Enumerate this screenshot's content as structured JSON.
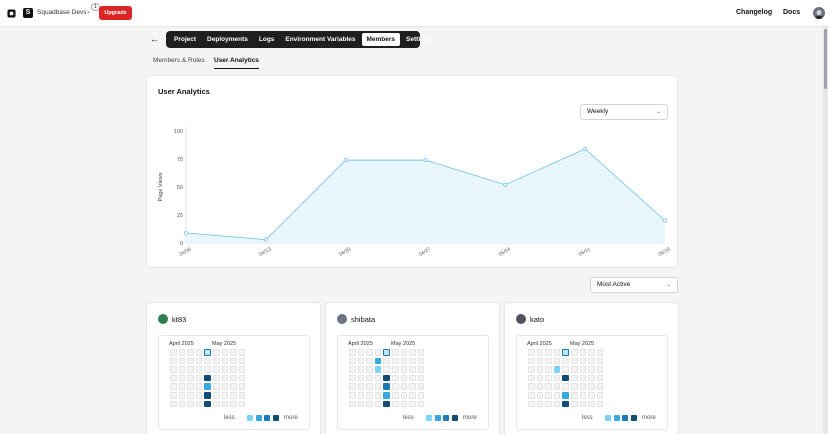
{
  "header": {
    "team_name": "Squadbase Devs",
    "notification_count": "1",
    "upgrade_label": "Upgrade",
    "changelog_label": "Changelog",
    "docs_label": "Docs"
  },
  "nav": {
    "tabs": [
      {
        "label": "Project",
        "active": false
      },
      {
        "label": "Deployments",
        "active": false
      },
      {
        "label": "Logs",
        "active": false
      },
      {
        "label": "Environment Variables",
        "active": false
      },
      {
        "label": "Members",
        "active": true
      },
      {
        "label": "Settings",
        "active": false
      }
    ],
    "subtabs": [
      {
        "label": "Members & Roles",
        "active": false
      },
      {
        "label": "User Analytics",
        "active": true
      }
    ]
  },
  "analytics": {
    "title": "User Analytics",
    "period_select": "Weekly",
    "sort_select": "Most Active"
  },
  "chart_data": {
    "type": "area",
    "x": [
      "04/06",
      "04/13",
      "04/20",
      "04/27",
      "05/04",
      "05/11",
      "05/18"
    ],
    "values": [
      9,
      3,
      74,
      74,
      52,
      84,
      20
    ],
    "ylabel": "Page Views",
    "xlabel": "",
    "ylim": [
      0,
      100
    ],
    "yticks": [
      0,
      25,
      50,
      75,
      100
    ],
    "color": "#7cc6e8",
    "fill": "#eaf6fd"
  },
  "members": [
    {
      "name": "kt83",
      "avatar_color": "#2f7d4f",
      "months": [
        "April 2025",
        "May 2025"
      ],
      "grid": [
        [
          0,
          0,
          0,
          0,
          0,
          0,
          0
        ],
        [
          0,
          0,
          0,
          0,
          0,
          0,
          0
        ],
        [
          0,
          0,
          0,
          0,
          0,
          0,
          0
        ],
        [
          0,
          0,
          0,
          0,
          0,
          0,
          0
        ],
        [
          3,
          0,
          0,
          4,
          2,
          4,
          4
        ],
        [
          0,
          0,
          0,
          0,
          0,
          0,
          0
        ],
        [
          0,
          0,
          0,
          0,
          0,
          0,
          0
        ],
        [
          0,
          0,
          0,
          0,
          0,
          0,
          0
        ],
        [
          0,
          0,
          0,
          0,
          0,
          0,
          0
        ]
      ],
      "highlight": [
        4,
        0
      ]
    },
    {
      "name": "shibata",
      "avatar_color": "#6b7280",
      "months": [
        "April 2025",
        "May 2025"
      ],
      "grid": [
        [
          0,
          0,
          0,
          0,
          0,
          0,
          0
        ],
        [
          0,
          0,
          0,
          0,
          0,
          0,
          0
        ],
        [
          0,
          0,
          0,
          0,
          0,
          0,
          0
        ],
        [
          0,
          2,
          1,
          0,
          0,
          0,
          0
        ],
        [
          1,
          0,
          0,
          4,
          3,
          2,
          4
        ],
        [
          0,
          0,
          0,
          0,
          0,
          0,
          0
        ],
        [
          0,
          0,
          0,
          0,
          0,
          0,
          0
        ],
        [
          0,
          0,
          0,
          0,
          0,
          0,
          0
        ],
        [
          0,
          0,
          0,
          0,
          0,
          0,
          0
        ]
      ],
      "highlight": [
        4,
        0
      ]
    },
    {
      "name": "kato",
      "avatar_color": "#52525b",
      "months": [
        "April 2025",
        "May 2025"
      ],
      "grid": [
        [
          0,
          0,
          0,
          0,
          0,
          0,
          0
        ],
        [
          0,
          0,
          0,
          0,
          0,
          0,
          0
        ],
        [
          0,
          0,
          0,
          0,
          0,
          0,
          0
        ],
        [
          0,
          0,
          1,
          0,
          0,
          0,
          0
        ],
        [
          3,
          0,
          0,
          4,
          0,
          2,
          4
        ],
        [
          0,
          0,
          0,
          0,
          0,
          0,
          0
        ],
        [
          0,
          0,
          0,
          0,
          0,
          0,
          0
        ],
        [
          0,
          0,
          0,
          0,
          0,
          0,
          0
        ],
        [
          0,
          0,
          0,
          0,
          0,
          0,
          0
        ]
      ],
      "highlight": [
        4,
        0
      ]
    }
  ],
  "legend": {
    "less_label": "less",
    "more_label": "more",
    "colors": [
      "#dbeef9",
      "#7dd3f5",
      "#38a9df",
      "#1d7ab5",
      "#0f4d78"
    ],
    "empty_color": "#f0f0f0"
  }
}
